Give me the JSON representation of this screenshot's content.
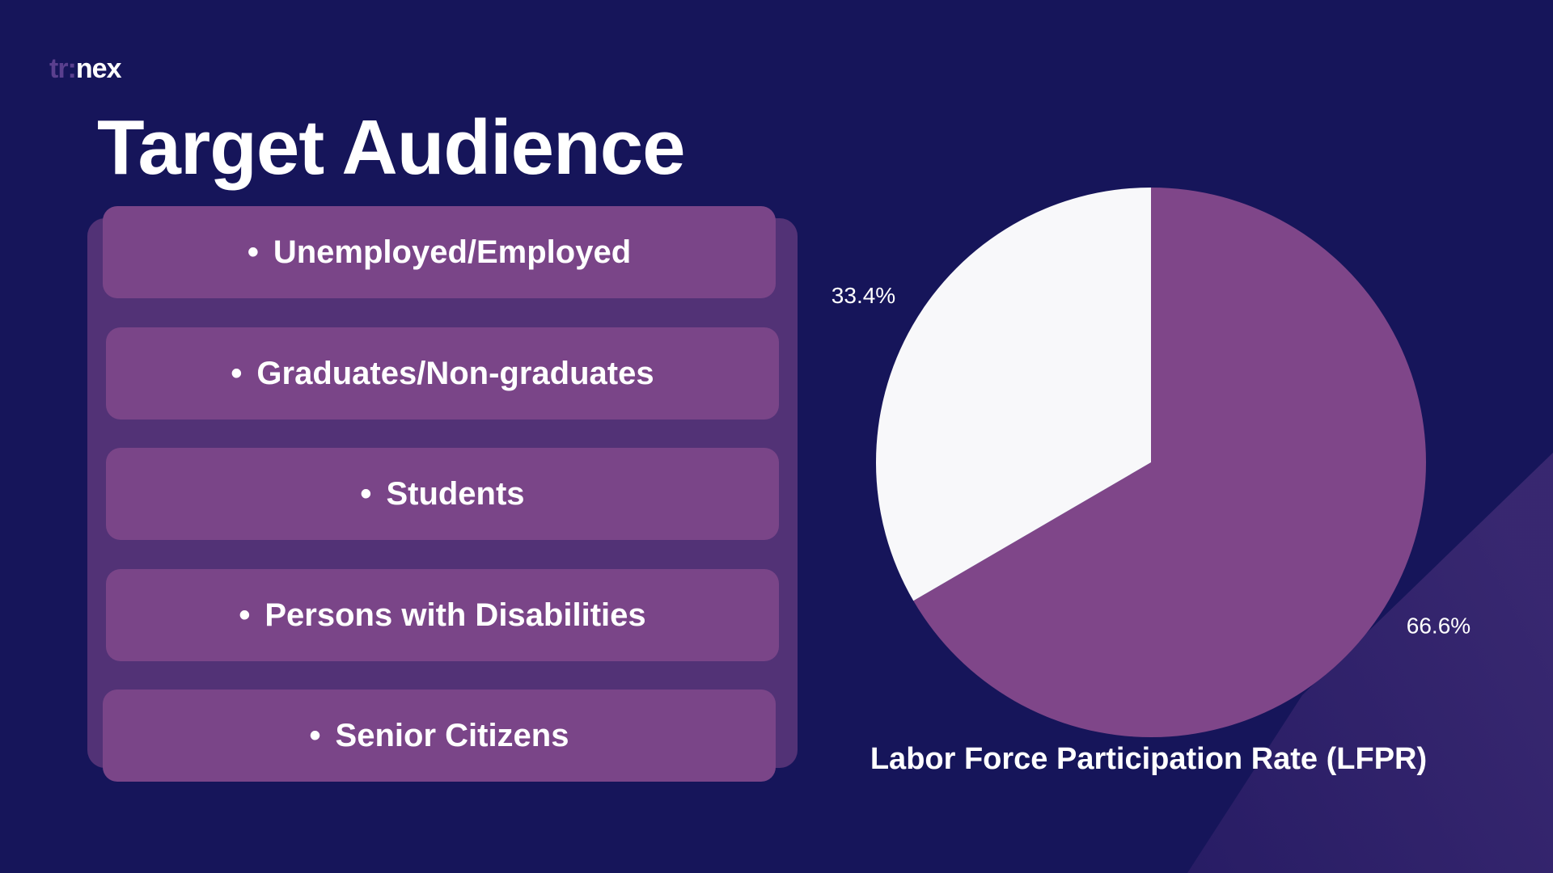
{
  "header": {
    "logo_prefix": "tr:",
    "logo_suffix": "nex",
    "title": "Target Audience"
  },
  "audience": {
    "bullet": "•",
    "items": [
      {
        "label": "Unemployed/Employed"
      },
      {
        "label": "Graduates/Non-graduates"
      },
      {
        "label": "Students"
      },
      {
        "label": "Persons with Disabilities"
      },
      {
        "label": "Senior Citizens"
      }
    ]
  },
  "colors": {
    "background": "#16155a",
    "panel": "#523276",
    "item": "#7a4588",
    "accent": "#7f4689",
    "slice_light": "#f8f8fa"
  },
  "chart_data": {
    "type": "pie",
    "title": "Labor Force Participation Rate (LFPR)",
    "categories": [
      "",
      ""
    ],
    "values": [
      66.6,
      33.4
    ],
    "labels": [
      "66.6%",
      "33.4%"
    ],
    "colors": [
      "#7f4689",
      "#f8f8fa"
    ],
    "start": "12 o'clock",
    "direction": "clockwise",
    "legend": "none"
  }
}
